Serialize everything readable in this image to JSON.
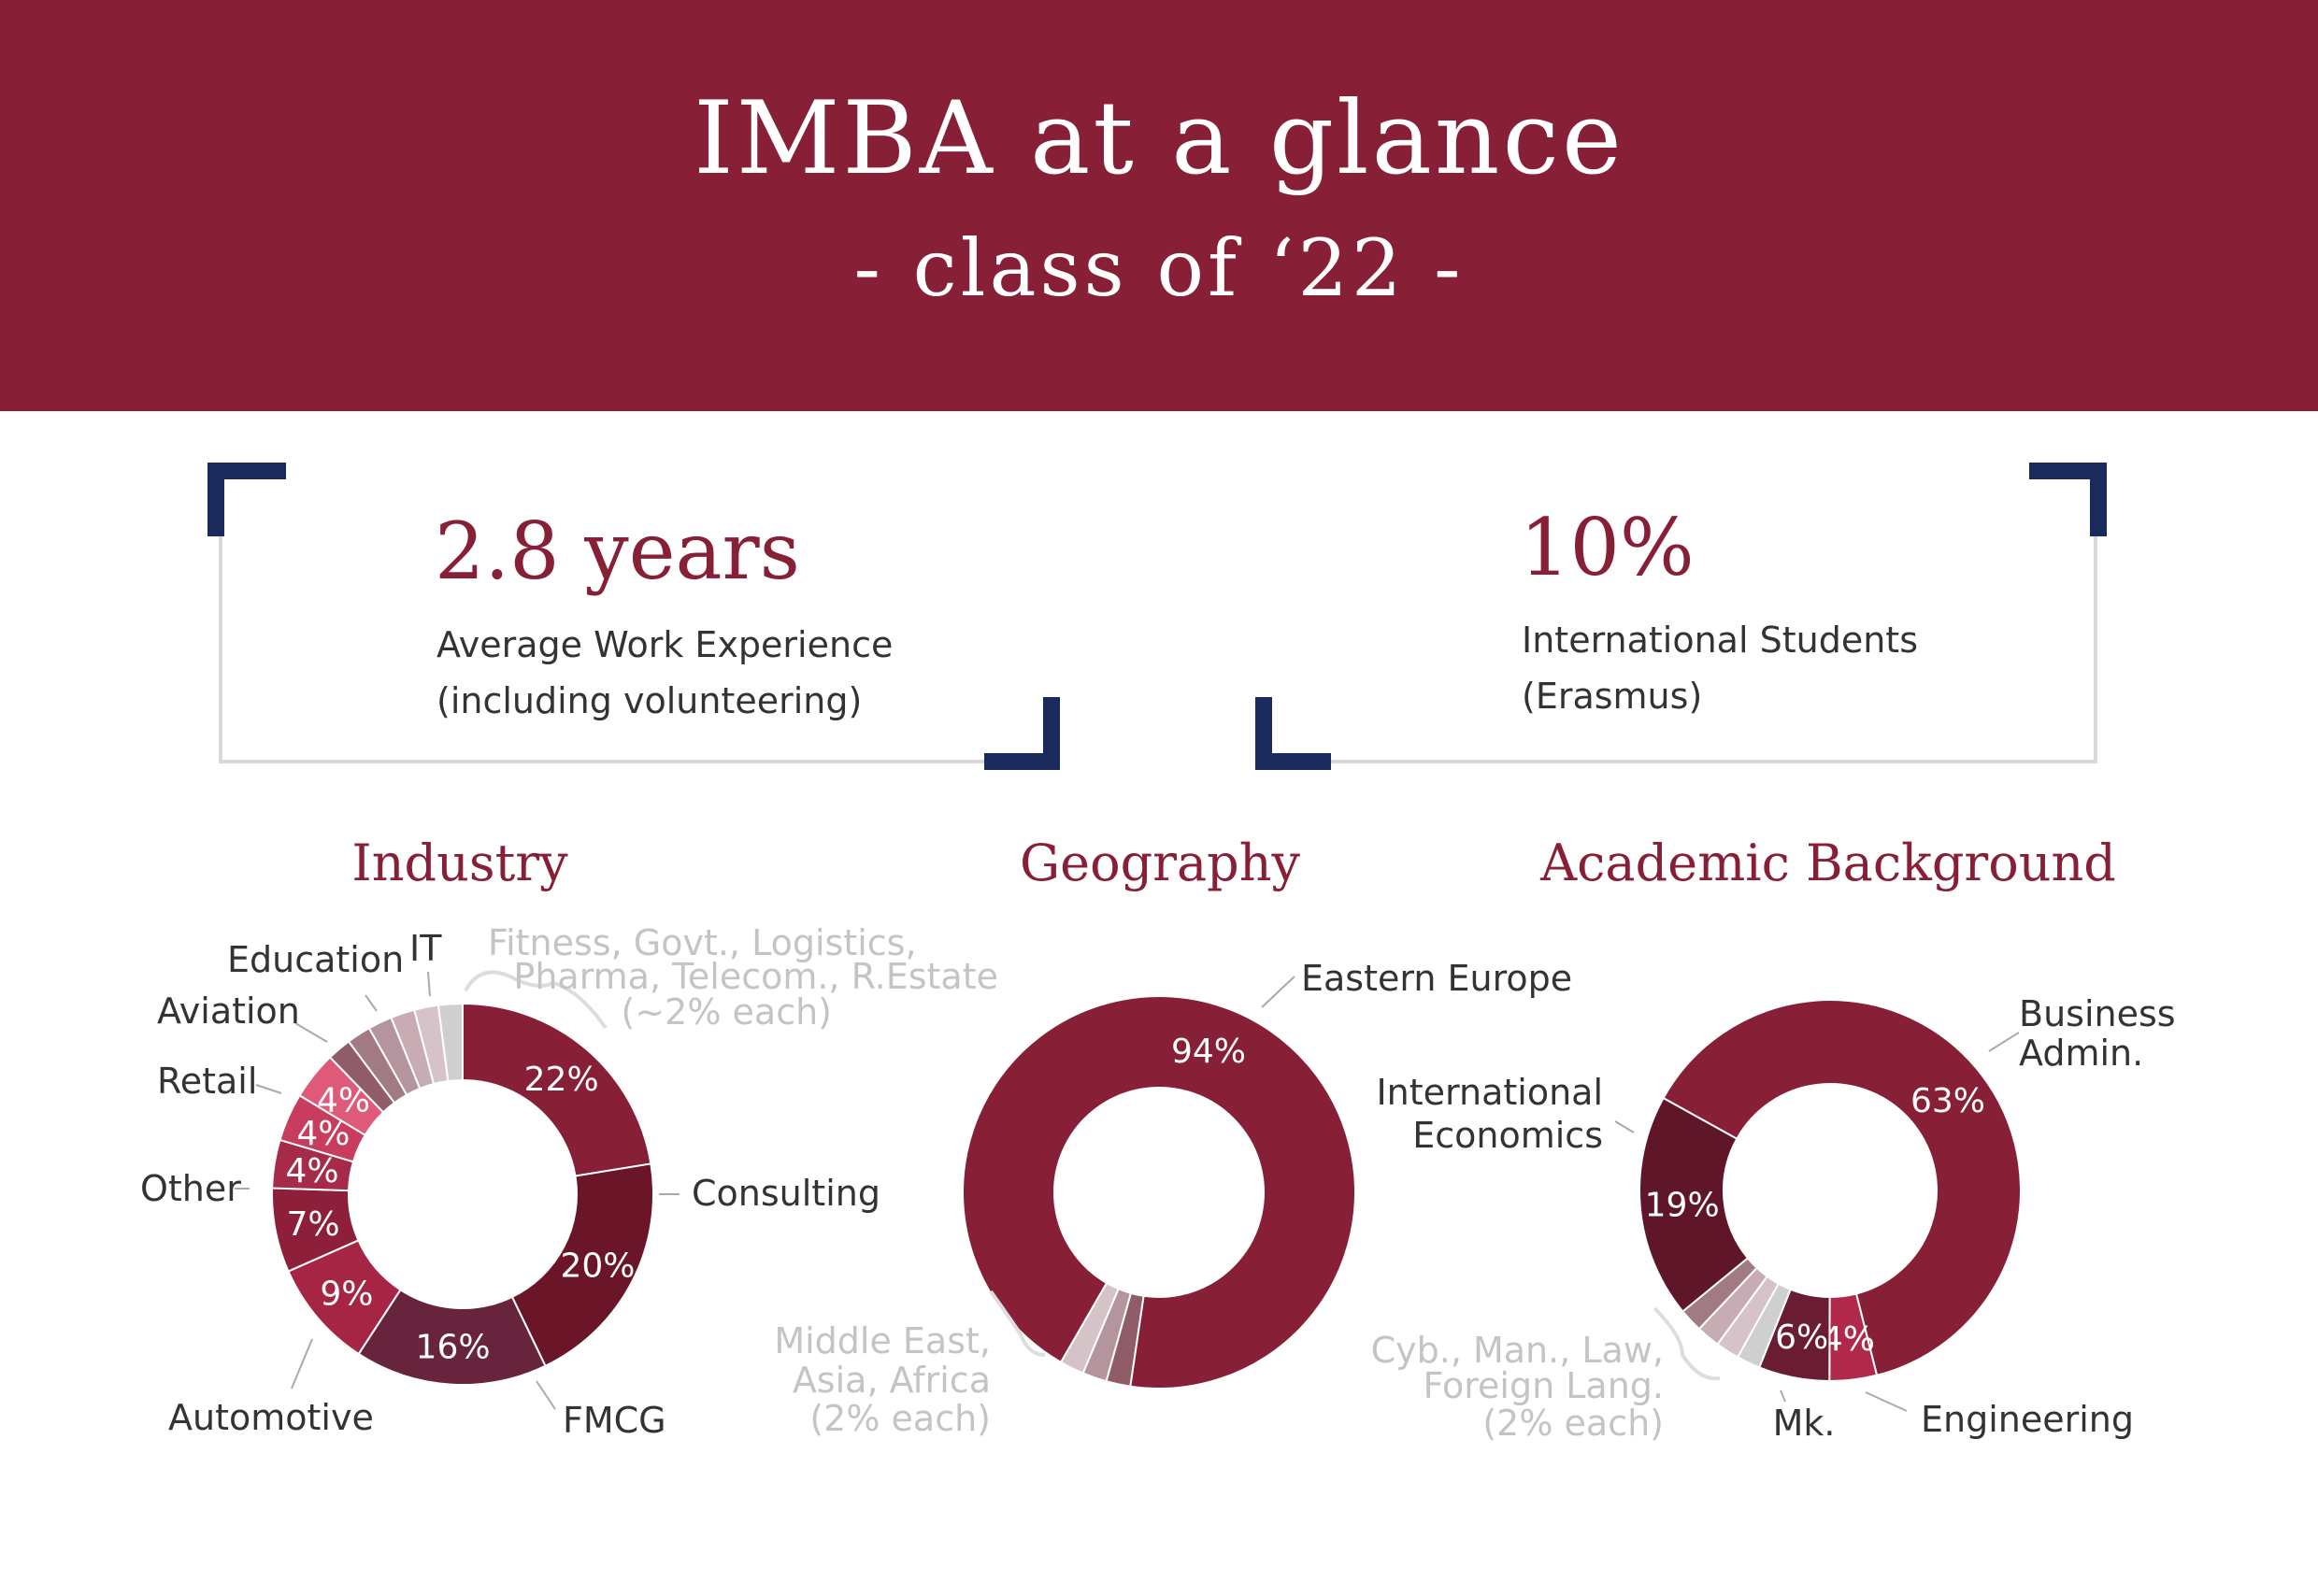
{
  "header": {
    "title": "IMBA at a glance",
    "subtitle": "- class of ‘22 -"
  },
  "stats": {
    "work_experience": {
      "value": "2.8 years",
      "label_line1": "Average Work Experience",
      "label_line2": "(including volunteering)"
    },
    "international": {
      "value": "10%",
      "label_line1": "International Students",
      "label_line2": "(Erasmus)"
    }
  },
  "colors": {
    "brand": "#871f36",
    "accent_navy": "#1b2a5c",
    "muted_label": "#c4c4c4",
    "bracket_line": "#d9d9d9"
  },
  "chart_data": [
    {
      "type": "pie",
      "title": "Industry",
      "donut": true,
      "slices": [
        {
          "label": "Consulting",
          "value": 22,
          "pct": "22%",
          "color": "#871f36"
        },
        {
          "label": "FMCG",
          "value": 20,
          "pct": "20%",
          "color": "#6a1628"
        },
        {
          "label": "Automotive",
          "value": 16,
          "pct": "16%",
          "color": "#68243c"
        },
        {
          "label": "Other",
          "value": 9,
          "pct": "9%",
          "color": "#a72544"
        },
        {
          "label": "Retail",
          "value": 7,
          "pct": "7%",
          "color": "#8d1f3b"
        },
        {
          "label": "Aviation",
          "value": 4,
          "pct": "4%",
          "color": "#a52b49"
        },
        {
          "label": "Education",
          "value": 4,
          "pct": "4%",
          "color": "#c83d5e"
        },
        {
          "label": "IT",
          "value": 4,
          "pct": "4%",
          "color": "#de5a78"
        },
        {
          "label": "Fitness",
          "value": 2,
          "pct": "",
          "color": "#8f5c67"
        },
        {
          "label": "Govt.",
          "value": 2,
          "pct": "",
          "color": "#a27a83"
        },
        {
          "label": "Logistics",
          "value": 2,
          "pct": "",
          "color": "#b5959d"
        },
        {
          "label": "Pharma",
          "value": 2,
          "pct": "",
          "color": "#c7adb3"
        },
        {
          "label": "Telecom.",
          "value": 2,
          "pct": "",
          "color": "#d6c3c8"
        },
        {
          "label": "R.Estate",
          "value": 2,
          "pct": "",
          "color": "#cfcfcf"
        }
      ],
      "group_note": [
        "Fitness, Govt., Logistics,",
        "Pharma, Telecom., R.Estate",
        "(~2% each)"
      ]
    },
    {
      "type": "pie",
      "title": "Geography",
      "donut": true,
      "slices": [
        {
          "label": "Eastern Europe",
          "value": 94,
          "pct": "94%",
          "color": "#871f36"
        },
        {
          "label": "Middle East",
          "value": 2,
          "pct": "",
          "color": "#8f5c67"
        },
        {
          "label": "Asia",
          "value": 2,
          "pct": "",
          "color": "#b5959d"
        },
        {
          "label": "Africa",
          "value": 2,
          "pct": "",
          "color": "#d6c3c8"
        }
      ],
      "group_note": [
        "Middle East,",
        "Asia, Africa",
        "(2% each)"
      ]
    },
    {
      "type": "pie",
      "title": "Academic Background",
      "donut": true,
      "slices": [
        {
          "label": "Business Admin.",
          "value": 63,
          "pct": "63%",
          "color": "#871f36"
        },
        {
          "label": "Engineering",
          "value": 4,
          "pct": "4%",
          "color": "#b0284a"
        },
        {
          "label": "Mk.",
          "value": 6,
          "pct": "6%",
          "color": "#6a1c32"
        },
        {
          "label": "Cyb.",
          "value": 2,
          "pct": "",
          "color": "#cfcfcf"
        },
        {
          "label": "Man.",
          "value": 2,
          "pct": "",
          "color": "#d6c3c8"
        },
        {
          "label": "Law",
          "value": 2,
          "pct": "",
          "color": "#c7adb3"
        },
        {
          "label": "Foreign Lang.",
          "value": 2,
          "pct": "",
          "color": "#a27a83"
        },
        {
          "label": "International Economics",
          "value": 19,
          "pct": "19%",
          "color": "#5e1628"
        }
      ],
      "group_note": [
        "Cyb., Man., Law,",
        "Foreign Lang.",
        "(2% each)"
      ]
    }
  ]
}
